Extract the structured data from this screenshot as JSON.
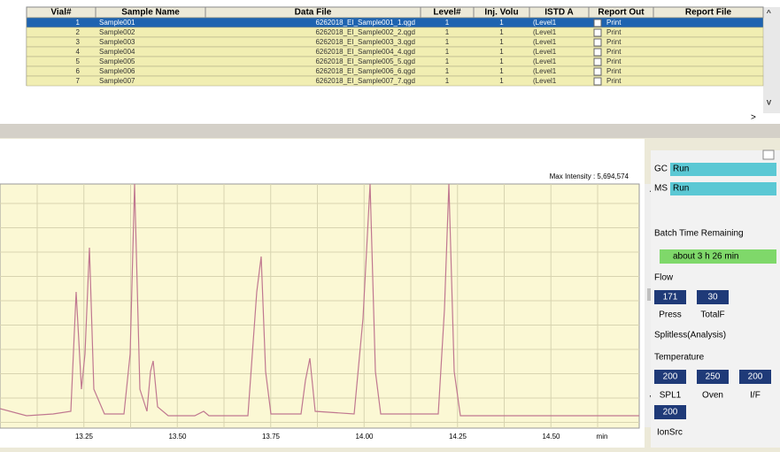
{
  "table": {
    "headers": [
      "Vial#",
      "Sample Name",
      "Data File",
      "Level#",
      "Inj. Volu",
      "ISTD A",
      "Report Out",
      "Report File"
    ],
    "rows": [
      [
        "1",
        "Sample001",
        "6262018_EI_Sample001_1.qgd",
        "1",
        "1",
        "(Level1",
        "Print"
      ],
      [
        "2",
        "Sample002",
        "6262018_EI_Sample002_2.qgd",
        "1",
        "1",
        "(Level1",
        "Print"
      ],
      [
        "3",
        "Sample003",
        "6262018_EI_Sample003_3.qgd",
        "1",
        "1",
        "(Level1",
        "Print"
      ],
      [
        "4",
        "Sample004",
        "6262018_EI_Sample004_4.qgd",
        "1",
        "1",
        "(Level1",
        "Print"
      ],
      [
        "5",
        "Sample005",
        "6262018_EI_Sample005_5.qgd",
        "1",
        "1",
        "(Level1",
        "Print"
      ],
      [
        "6",
        "Sample006",
        "6262018_EI_Sample006_6.qgd",
        "1",
        "1",
        "(Level1",
        "Print"
      ],
      [
        "7",
        "Sample007",
        "6262018_EI_Sample007_7.qgd",
        "1",
        "1",
        "(Level1",
        "Print"
      ]
    ]
  },
  "chromatogram": {
    "max_intensity": "Max Intensity : 5,694,574",
    "x_ticks": [
      "13.25",
      "13.50",
      "13.75",
      "14.00",
      "14.25",
      "14.50"
    ],
    "x_unit": "min"
  },
  "status": {
    "gc_label": "GC",
    "gc_state": "Run",
    "ms_label": "MS",
    "ms_state": "Run",
    "batch_label": "Batch Time Remaining",
    "batch_time": "about 3 h 26 min",
    "flow_label": "Flow",
    "flow_values": [
      "171",
      "30"
    ],
    "flow_names": [
      "Press",
      "TotalF"
    ],
    "mode": "Splitless(Analysis)",
    "temp_label": "Temperature",
    "temp_values": [
      "200",
      "250",
      "200"
    ],
    "temp_names": [
      "SPL1",
      "Oven",
      "I/F"
    ],
    "ion_value": "200",
    "ion_name": "IonSrc"
  }
}
